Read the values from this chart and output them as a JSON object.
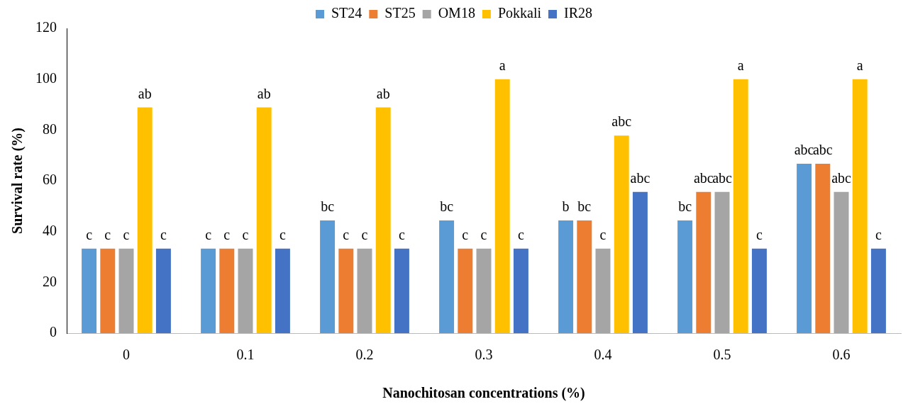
{
  "chart_data": {
    "type": "bar",
    "xlabel": "Nanochitosan concentrations (%)",
    "ylabel": "Survival rate (%)",
    "categories": [
      "0",
      "0.1",
      "0.2",
      "0.3",
      "0.4",
      "0.5",
      "0.6"
    ],
    "ylim": [
      0,
      120
    ],
    "yticks": [
      0,
      20,
      40,
      60,
      80,
      100,
      120
    ],
    "grid": false,
    "legend": "top",
    "series": [
      {
        "name": "ST24",
        "color": "#5b9bd5",
        "values": [
          33.3,
          33.3,
          44.4,
          44.4,
          44.4,
          44.4,
          66.7
        ],
        "value_labels": [
          "c",
          "c",
          "bc",
          "bc",
          "b",
          "bc",
          "abc"
        ]
      },
      {
        "name": "ST25",
        "color": "#ed7d31",
        "values": [
          33.3,
          33.3,
          33.3,
          33.3,
          44.4,
          55.6,
          66.7
        ],
        "value_labels": [
          "c",
          "c",
          "c",
          "c",
          "bc",
          "abc",
          "abc"
        ]
      },
      {
        "name": "OM18",
        "color": "#a5a5a5",
        "values": [
          33.3,
          33.3,
          33.3,
          33.3,
          33.3,
          55.6,
          55.6
        ],
        "value_labels": [
          "c",
          "c",
          "c",
          "c",
          "c",
          "abc",
          "abc"
        ]
      },
      {
        "name": "Pokkali",
        "color": "#ffc000",
        "values": [
          88.9,
          88.9,
          88.9,
          100,
          77.8,
          100,
          100
        ],
        "value_labels": [
          "ab",
          "ab",
          "ab",
          "a",
          "abc",
          "a",
          "a"
        ]
      },
      {
        "name": "IR28",
        "color": "#4472c4",
        "values": [
          33.3,
          33.3,
          33.3,
          33.3,
          55.6,
          33.3,
          33.3
        ],
        "value_labels": [
          "c",
          "c",
          "c",
          "c",
          "abc",
          "c",
          "c"
        ]
      }
    ]
  }
}
